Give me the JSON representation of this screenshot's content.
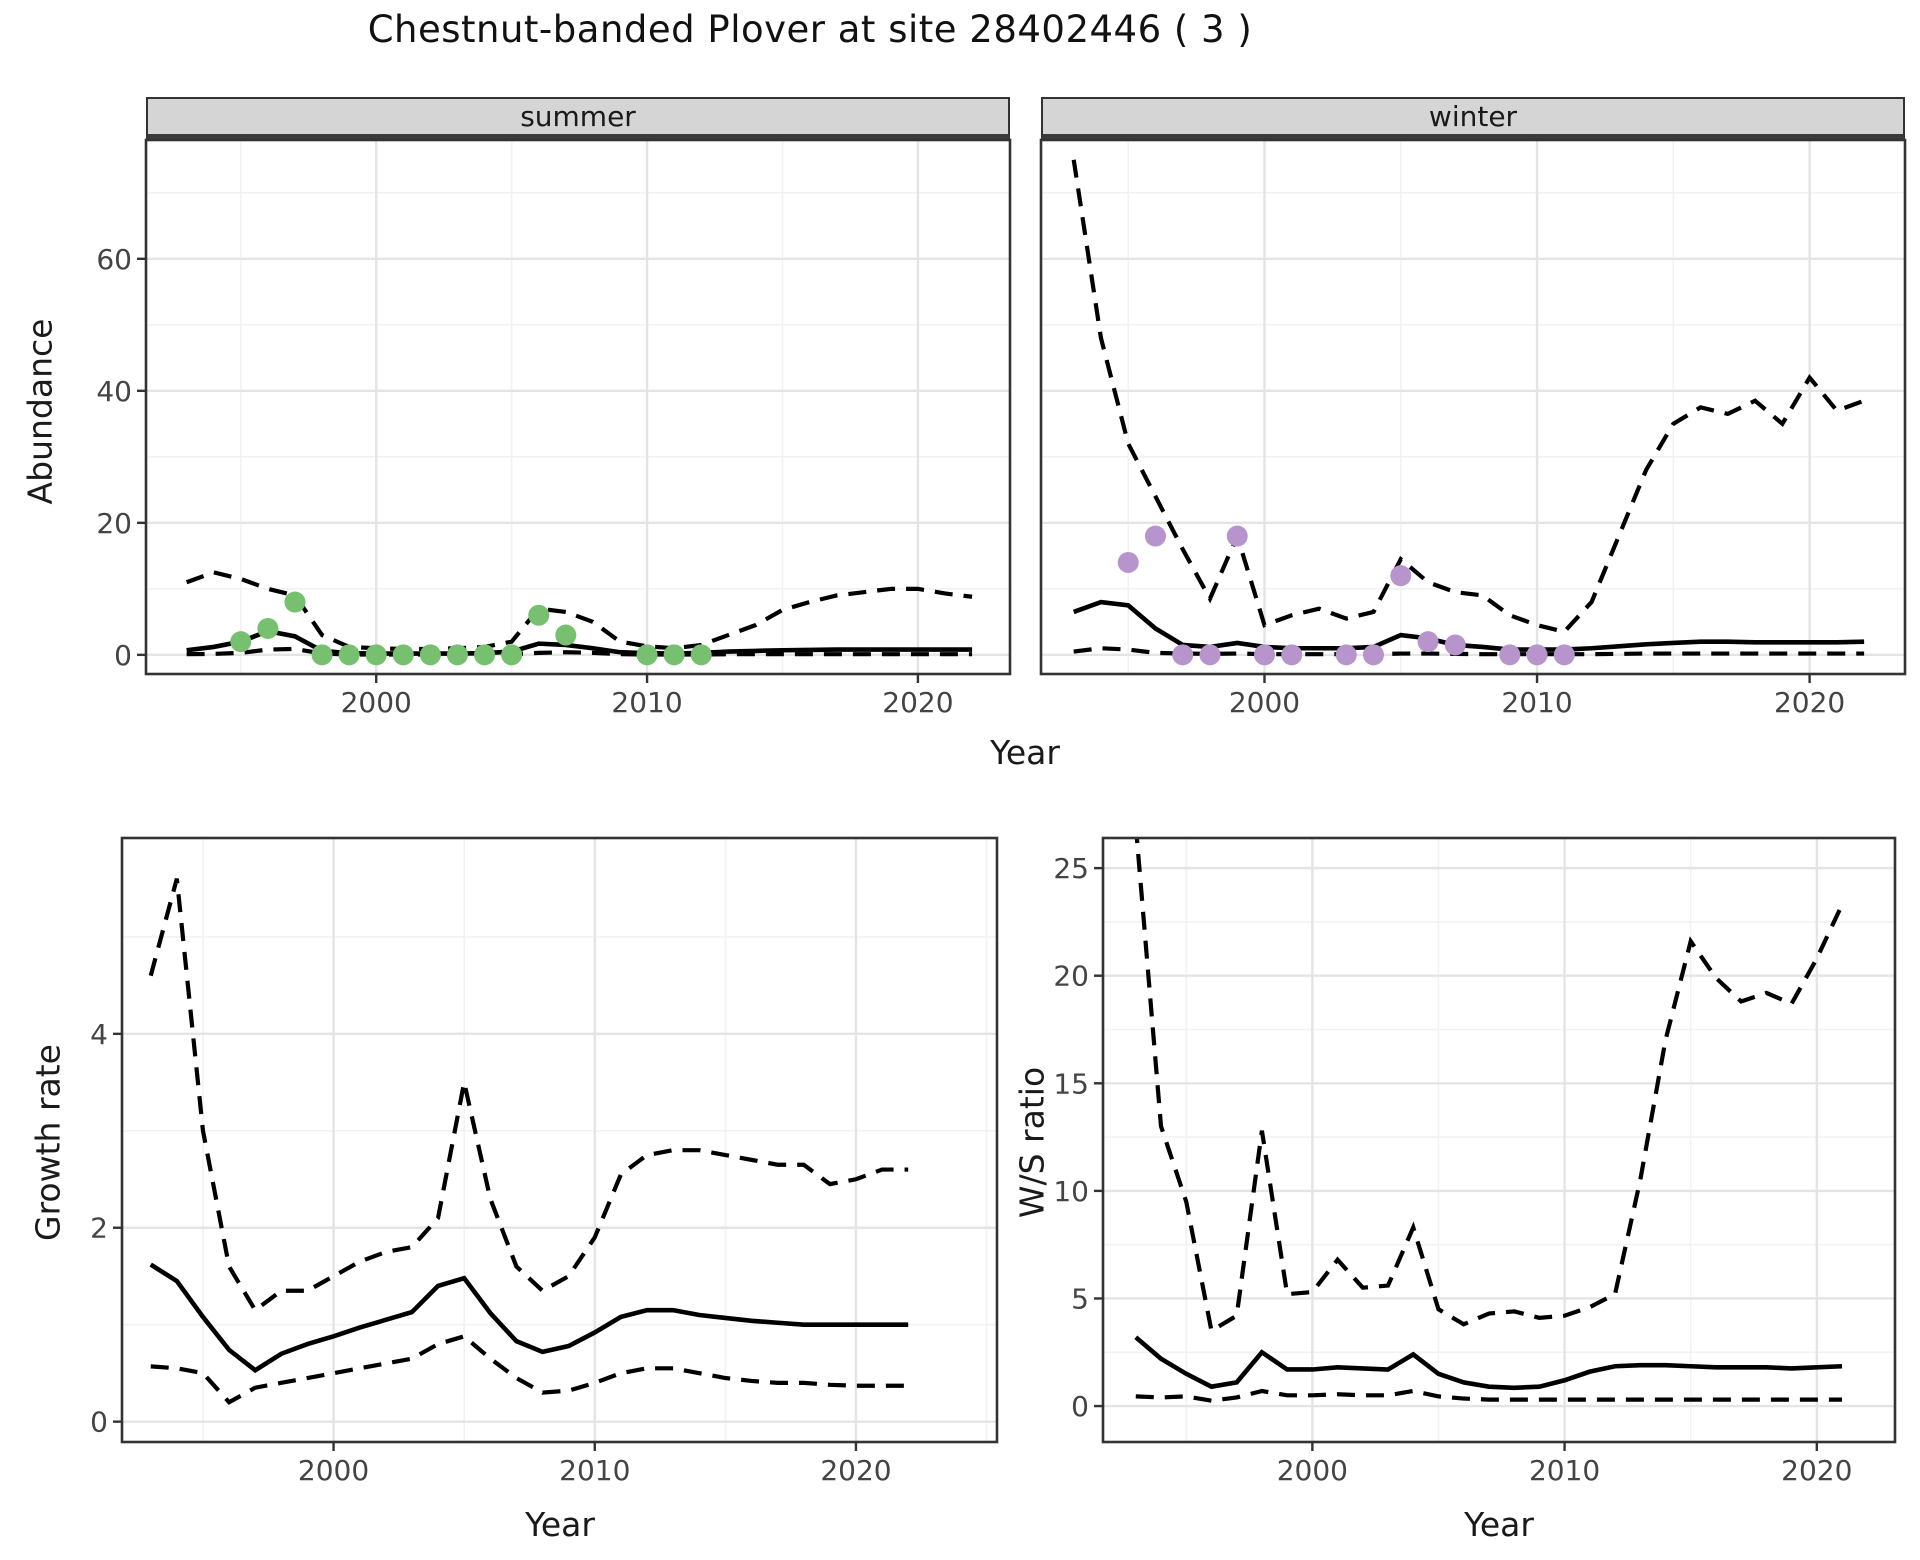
{
  "page": {
    "title": "Chestnut-banded Plover at site 28402446 ( 3 )"
  },
  "colors": {
    "summer_dot": "#77c06f",
    "winter_dot": "#b795cc",
    "line": "#000000",
    "strip_bg": "#d5d5d5",
    "grid_major": "#e4e4e4",
    "grid_minor": "#f2f2f2",
    "panel_border": "#333333",
    "tick_text": "#444444"
  },
  "facets": {
    "summer": "summer",
    "winter": "winter"
  },
  "axis_titles": {
    "top_x": "Year",
    "top_y": "Abundance",
    "bottom_left_x": "Year",
    "bottom_left_y": "Growth rate",
    "bottom_right_x": "Year",
    "bottom_right_y": "W/S ratio"
  },
  "chart_data": [
    {
      "type": "line",
      "facet": "summer",
      "xlabel": "Year",
      "ylabel": "Abundance",
      "xlim": [
        1991.5,
        2023.4
      ],
      "ylim": [
        -2.9,
        78
      ],
      "x_ticks": [
        2000,
        2010,
        2020
      ],
      "x_minor": [
        1995,
        2005,
        2015
      ],
      "y_ticks": [
        0,
        20,
        40,
        60
      ],
      "y_minor": [
        10,
        30,
        50,
        70
      ],
      "y_labels_shown": true,
      "grid": true,
      "years": [
        1993,
        1994,
        1995,
        1996,
        1997,
        1998,
        1999,
        2000,
        2001,
        2002,
        2003,
        2004,
        2005,
        2006,
        2007,
        2008,
        2009,
        2010,
        2011,
        2012,
        2013,
        2014,
        2015,
        2016,
        2017,
        2018,
        2019,
        2020,
        2021,
        2022
      ],
      "median": [
        0.7,
        1.2,
        2.0,
        3.6,
        2.8,
        0.6,
        0.25,
        0.2,
        0.2,
        0.2,
        0.2,
        0.25,
        0.5,
        1.7,
        1.5,
        1.0,
        0.4,
        0.25,
        0.2,
        0.3,
        0.5,
        0.6,
        0.7,
        0.75,
        0.8,
        0.8,
        0.8,
        0.8,
        0.8,
        0.8
      ],
      "upper_ci": [
        11,
        12.5,
        11.5,
        10,
        9,
        3,
        1.2,
        1.0,
        0.9,
        0.9,
        1.0,
        1.2,
        2.0,
        7.0,
        6.5,
        5.0,
        2.0,
        1.3,
        1.0,
        1.5,
        3.0,
        4.5,
        6.8,
        8.0,
        9.0,
        9.5,
        10,
        10,
        9.3,
        8.8
      ],
      "lower_ci": [
        0.1,
        0.15,
        0.3,
        0.8,
        0.9,
        0.2,
        0.05,
        0.05,
        0.05,
        0.05,
        0.05,
        0.05,
        0.1,
        0.3,
        0.4,
        0.3,
        0.1,
        0.05,
        0.05,
        0.05,
        0.1,
        0.1,
        0.1,
        0.1,
        0.1,
        0.1,
        0.1,
        0.1,
        0.1,
        0.1
      ],
      "observations": [
        [
          1995,
          2
        ],
        [
          1996,
          4
        ],
        [
          1997,
          8
        ],
        [
          1998,
          0
        ],
        [
          1999,
          0
        ],
        [
          2000,
          0
        ],
        [
          2001,
          0
        ],
        [
          2002,
          0
        ],
        [
          2003,
          0
        ],
        [
          2004,
          0
        ],
        [
          2005,
          0
        ],
        [
          2006,
          6
        ],
        [
          2007,
          3
        ],
        [
          2010,
          0
        ],
        [
          2011,
          0
        ],
        [
          2012,
          0
        ]
      ],
      "point_color": "#77c06f"
    },
    {
      "type": "line",
      "facet": "winter",
      "xlabel": "Year",
      "ylabel": "Abundance",
      "xlim": [
        1991.8,
        2023.5
      ],
      "ylim": [
        -2.9,
        78
      ],
      "x_ticks": [
        2000,
        2010,
        2020
      ],
      "x_minor": [
        1995,
        2005,
        2015
      ],
      "y_ticks": [
        0,
        20,
        40,
        60
      ],
      "y_minor": [
        10,
        30,
        50,
        70
      ],
      "y_labels_shown": false,
      "grid": true,
      "years": [
        1993,
        1994,
        1995,
        1996,
        1997,
        1998,
        1999,
        2000,
        2001,
        2002,
        2003,
        2004,
        2005,
        2006,
        2007,
        2008,
        2009,
        2010,
        2011,
        2012,
        2013,
        2014,
        2015,
        2016,
        2017,
        2018,
        2019,
        2020,
        2021,
        2022
      ],
      "median": [
        6.5,
        8,
        7.5,
        4,
        1.5,
        1.2,
        1.8,
        1.2,
        1,
        1,
        1,
        1.2,
        3,
        2.5,
        1.5,
        1.2,
        0.8,
        0.8,
        0.8,
        1,
        1.3,
        1.6,
        1.8,
        2,
        2,
        1.9,
        1.9,
        1.9,
        1.9,
        2
      ],
      "upper_ci": [
        75,
        48,
        32,
        24,
        16,
        8.5,
        18,
        4.5,
        6,
        7,
        5.5,
        6.5,
        14.5,
        11,
        9.5,
        9,
        6,
        4.5,
        3.5,
        8,
        18,
        28,
        35,
        37.5,
        36.5,
        38.5,
        35,
        42,
        37,
        38.5
      ],
      "lower_ci": [
        0.5,
        1,
        0.8,
        0.3,
        0.2,
        0.15,
        0.2,
        0.1,
        0.1,
        0.1,
        0.1,
        0.1,
        0.2,
        0.2,
        0.15,
        0.1,
        0.1,
        0.1,
        0.1,
        0.1,
        0.15,
        0.2,
        0.2,
        0.2,
        0.2,
        0.2,
        0.2,
        0.2,
        0.2,
        0.2
      ],
      "observations": [
        [
          1995,
          14
        ],
        [
          1996,
          18
        ],
        [
          1997,
          0
        ],
        [
          1998,
          0
        ],
        [
          1999,
          18
        ],
        [
          2000,
          0
        ],
        [
          2001,
          0
        ],
        [
          2003,
          0
        ],
        [
          2004,
          0
        ],
        [
          2005,
          12
        ],
        [
          2006,
          2
        ],
        [
          2007,
          1.5
        ],
        [
          2009,
          0
        ],
        [
          2010,
          0
        ],
        [
          2011,
          0
        ]
      ],
      "point_color": "#b795cc"
    },
    {
      "type": "line",
      "facet": null,
      "xlabel": "Year",
      "ylabel": "Growth rate",
      "xlim": [
        1991.9,
        2025.4
      ],
      "ylim": [
        -0.21,
        6.02
      ],
      "x_ticks": [
        2000,
        2010,
        2020
      ],
      "x_minor": [
        1995,
        2005,
        2015,
        2025
      ],
      "y_ticks": [
        0,
        2,
        4
      ],
      "y_minor": [
        1,
        3,
        5
      ],
      "y_labels_shown": true,
      "grid": true,
      "years": [
        1993,
        1994,
        1995,
        1996,
        1997,
        1998,
        1999,
        2000,
        2001,
        2002,
        2003,
        2004,
        2005,
        2006,
        2007,
        2008,
        2009,
        2010,
        2011,
        2012,
        2013,
        2014,
        2015,
        2016,
        2017,
        2018,
        2019,
        2020,
        2021,
        2022
      ],
      "median": [
        1.62,
        1.45,
        1.08,
        0.74,
        0.53,
        0.7,
        0.8,
        0.88,
        0.97,
        1.05,
        1.13,
        1.4,
        1.48,
        1.12,
        0.83,
        0.72,
        0.78,
        0.92,
        1.08,
        1.15,
        1.15,
        1.1,
        1.07,
        1.04,
        1.02,
        1.0,
        1.0,
        1.0,
        1.0,
        1.0
      ],
      "upper_ci": [
        4.6,
        5.6,
        3.0,
        1.6,
        1.15,
        1.35,
        1.35,
        1.5,
        1.65,
        1.75,
        1.8,
        2.1,
        3.5,
        2.3,
        1.6,
        1.35,
        1.5,
        1.9,
        2.55,
        2.75,
        2.8,
        2.8,
        2.75,
        2.7,
        2.65,
        2.65,
        2.45,
        2.5,
        2.6,
        2.6
      ],
      "lower_ci": [
        0.57,
        0.55,
        0.5,
        0.2,
        0.35,
        0.4,
        0.45,
        0.5,
        0.55,
        0.6,
        0.65,
        0.8,
        0.88,
        0.65,
        0.45,
        0.3,
        0.32,
        0.4,
        0.5,
        0.55,
        0.55,
        0.5,
        0.45,
        0.42,
        0.4,
        0.4,
        0.38,
        0.37,
        0.37,
        0.37
      ],
      "observations": [],
      "point_color": null
    },
    {
      "type": "line",
      "facet": null,
      "xlabel": "Year",
      "ylabel": "W/S ratio",
      "xlim": [
        1991.7,
        2023.1
      ],
      "ylim": [
        -1.67,
        26.4
      ],
      "x_ticks": [
        2000,
        2010,
        2020
      ],
      "x_minor": [
        1995,
        2005,
        2015
      ],
      "y_ticks": [
        0,
        5,
        10,
        15,
        20,
        25
      ],
      "y_minor": [
        2.5,
        7.5,
        12.5,
        17.5,
        22.5
      ],
      "y_labels_shown": true,
      "grid": true,
      "years": [
        1993,
        1994,
        1995,
        1996,
        1997,
        1998,
        1999,
        2000,
        2001,
        2002,
        2003,
        2004,
        2005,
        2006,
        2007,
        2008,
        2009,
        2010,
        2011,
        2012,
        2013,
        2014,
        2015,
        2016,
        2017,
        2018,
        2019,
        2020,
        2021
      ],
      "median": [
        3.2,
        2.2,
        1.5,
        0.9,
        1.1,
        2.5,
        1.7,
        1.7,
        1.8,
        1.75,
        1.7,
        2.4,
        1.5,
        1.1,
        0.9,
        0.85,
        0.9,
        1.2,
        1.6,
        1.85,
        1.9,
        1.9,
        1.85,
        1.8,
        1.8,
        1.8,
        1.75,
        1.8,
        1.85
      ],
      "upper_ci": [
        27,
        13,
        9.5,
        3.5,
        4.2,
        12.8,
        5.2,
        5.3,
        6.8,
        5.5,
        5.6,
        8.3,
        4.5,
        3.8,
        4.3,
        4.4,
        4.1,
        4.2,
        4.6,
        5.2,
        10.5,
        17,
        21.6,
        19.9,
        18.8,
        19.2,
        18.7,
        20.8,
        23.3
      ],
      "lower_ci": [
        0.45,
        0.4,
        0.45,
        0.25,
        0.4,
        0.7,
        0.5,
        0.5,
        0.55,
        0.5,
        0.5,
        0.7,
        0.45,
        0.35,
        0.3,
        0.3,
        0.3,
        0.3,
        0.3,
        0.3,
        0.3,
        0.3,
        0.3,
        0.3,
        0.3,
        0.3,
        0.3,
        0.3,
        0.3
      ],
      "observations": [],
      "point_color": null
    }
  ]
}
